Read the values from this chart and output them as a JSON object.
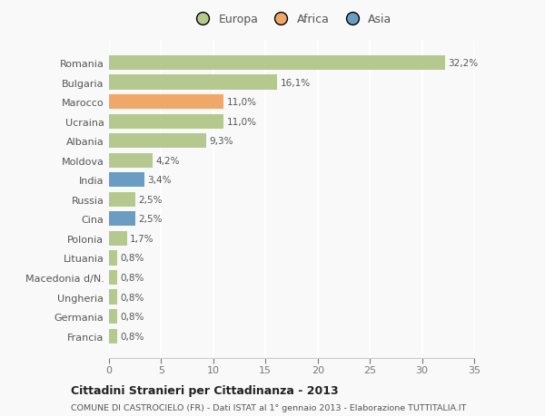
{
  "categories": [
    "Francia",
    "Germania",
    "Ungheria",
    "Macedonia d/N.",
    "Lituania",
    "Polonia",
    "Cina",
    "Russia",
    "India",
    "Moldova",
    "Albania",
    "Ucraina",
    "Marocco",
    "Bulgaria",
    "Romania"
  ],
  "values": [
    0.8,
    0.8,
    0.8,
    0.8,
    0.8,
    1.7,
    2.5,
    2.5,
    3.4,
    4.2,
    9.3,
    11.0,
    11.0,
    16.1,
    32.2
  ],
  "colors": [
    "#b5c98e",
    "#b5c98e",
    "#b5c98e",
    "#b5c98e",
    "#b5c98e",
    "#b5c98e",
    "#6b9dc2",
    "#b5c98e",
    "#6b9dc2",
    "#b5c98e",
    "#b5c98e",
    "#b5c98e",
    "#f0a868",
    "#b5c98e",
    "#b5c98e"
  ],
  "labels": [
    "0,8%",
    "0,8%",
    "0,8%",
    "0,8%",
    "0,8%",
    "1,7%",
    "2,5%",
    "2,5%",
    "3,4%",
    "4,2%",
    "9,3%",
    "11,0%",
    "11,0%",
    "16,1%",
    "32,2%"
  ],
  "xlim": [
    0,
    35
  ],
  "xticks": [
    0,
    5,
    10,
    15,
    20,
    25,
    30,
    35
  ],
  "legend_labels": [
    "Europa",
    "Africa",
    "Asia"
  ],
  "legend_colors": [
    "#b5c98e",
    "#f0a868",
    "#6b9dc2"
  ],
  "title": "Cittadini Stranieri per Cittadinanza - 2013",
  "subtitle": "COMUNE DI CASTROCIELO (FR) - Dati ISTAT al 1° gennaio 2013 - Elaborazione TUTTITALIA.IT",
  "bg_color": "#f9f9f9",
  "plot_bg_color": "#f9f9f9",
  "grid_color": "#ffffff",
  "bar_height": 0.75
}
